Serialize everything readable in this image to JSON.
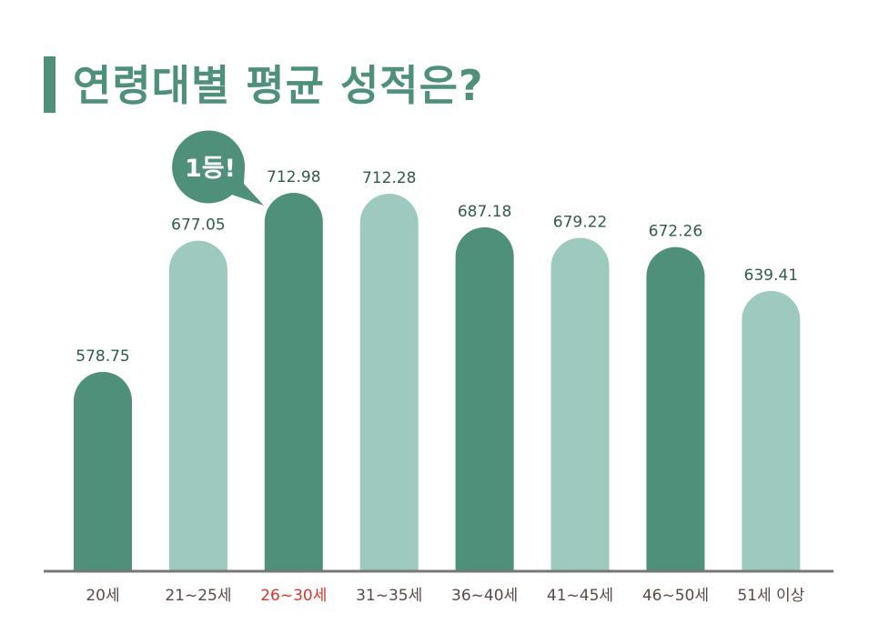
{
  "title": "연령대별 평균 성적은?",
  "badge": "1등!",
  "colors": {
    "dark": "#4e9079",
    "light": "#9dc9be",
    "axis": "#777777",
    "highlight": "#d9352c"
  },
  "chart_data": {
    "type": "bar",
    "title": "연령대별 평균 성적은?",
    "categories": [
      "20세",
      "21~25세",
      "26~30세",
      "31~35세",
      "36~40세",
      "41~45세",
      "46~50세",
      "51세 이상"
    ],
    "values": [
      578.75,
      677.05,
      712.98,
      712.28,
      687.18,
      679.22,
      672.26,
      639.41
    ],
    "value_labels": [
      "578.75",
      "677.05",
      "712.98",
      "712.28",
      "687.18",
      "679.22",
      "672.26",
      "639.41"
    ],
    "tones": [
      "dark",
      "light",
      "dark",
      "light",
      "dark",
      "light",
      "dark",
      "light"
    ],
    "highlight_index": 2,
    "ylim": [
      430,
      730
    ],
    "grid": false,
    "legend": "none"
  }
}
